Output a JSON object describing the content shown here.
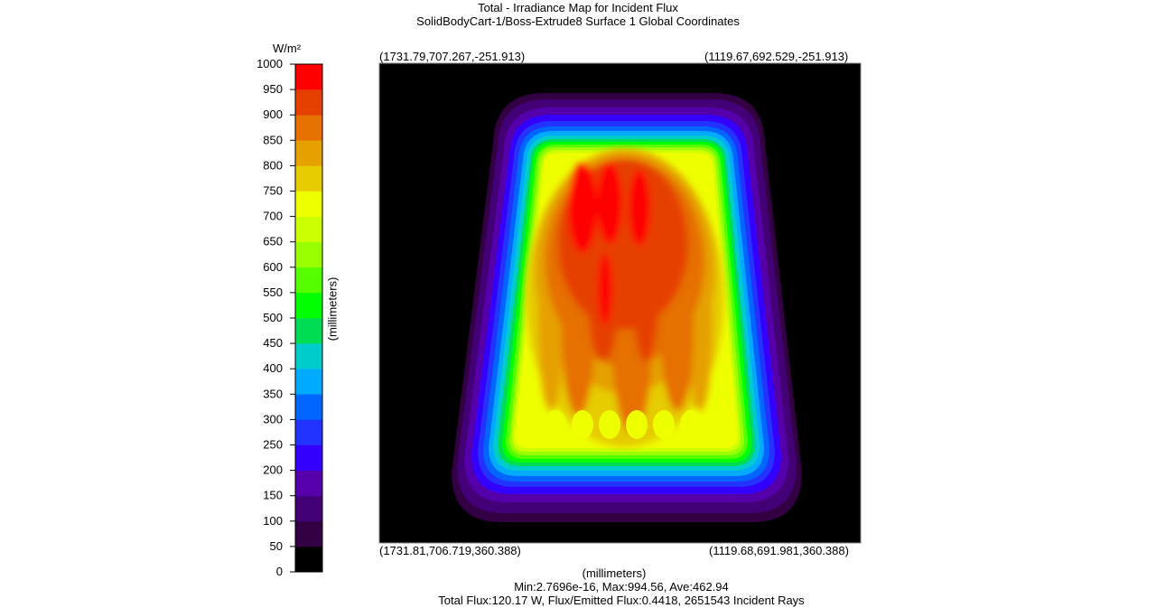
{
  "chart_data": {
    "type": "heatmap",
    "title": "Total - Irradiance Map for Incident Flux",
    "subtitle": "SolidBodyCart-1/Boss-Extrude8 Surface 1    Global Coordinates",
    "xlabel": "(millimeters)",
    "ylabel": "(millimeters)",
    "colorbar": {
      "unit": "W/m²",
      "range": [
        0,
        1000
      ],
      "ticks": [
        0,
        50,
        100,
        150,
        200,
        250,
        300,
        350,
        400,
        450,
        500,
        550,
        600,
        650,
        700,
        750,
        800,
        850,
        900,
        950,
        1000
      ],
      "colors": [
        "#000000",
        "#330044",
        "#440077",
        "#5500aa",
        "#3300ff",
        "#2233ff",
        "#0066ff",
        "#00aaff",
        "#00cccc",
        "#00dd55",
        "#00ff00",
        "#55ff00",
        "#99ff00",
        "#ccff00",
        "#eeff00",
        "#e6cc00",
        "#e6a000",
        "#e67000",
        "#e64000",
        "#ff0000"
      ]
    },
    "corners": {
      "top_left": "(1731.79,707.267,-251.913)",
      "top_right": "(1119.67,692.529,-251.913)",
      "bottom_left": "(1731.81,706.719,360.388)",
      "bottom_right": "(1119.68,691.981,360.388)"
    },
    "stats": {
      "line1": "Min:2.7696e-16, Max:994.56, Ave:462.94",
      "line2": "Total Flux:120.17 W, Flux/Emitted Flux:0.4418, 2651543 Incident Rays"
    }
  }
}
